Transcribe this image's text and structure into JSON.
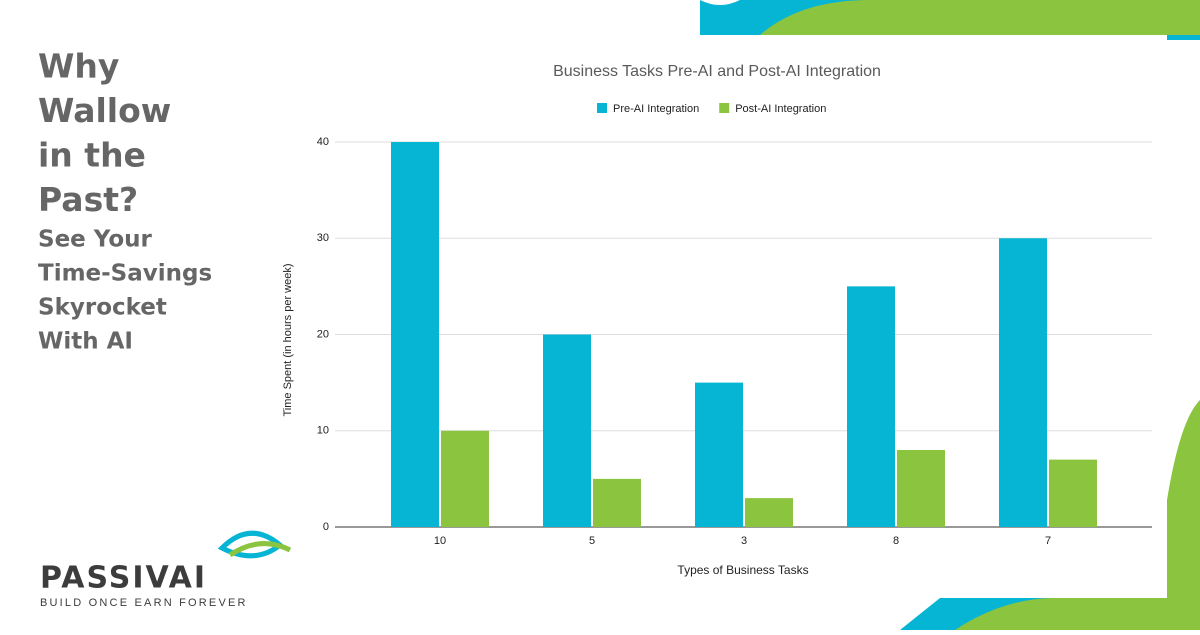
{
  "headline": [
    "Why",
    "Wallow",
    "in the",
    "Past?"
  ],
  "subheadline": [
    "See Your",
    "Time-Savings",
    "Skyrocket",
    "With AI"
  ],
  "brand": {
    "name": "PASSIVAI",
    "tagline": "BUILD ONCE EARN FOREVER"
  },
  "chart_data": {
    "type": "bar",
    "title": "Business Tasks Pre-AI and Post-AI Integration",
    "x_label": "Types of Business Tasks",
    "y_label": "Time Spent (in hours per week)",
    "categories": [
      "10",
      "5",
      "3",
      "8",
      "7"
    ],
    "series": [
      {
        "name": "Pre-AI Integration",
        "color": "#05b5d3",
        "values": [
          40,
          20,
          15,
          25,
          30
        ]
      },
      {
        "name": "Post-AI Integration",
        "color": "#8bc43f",
        "values": [
          10,
          5,
          3,
          8,
          7
        ]
      }
    ],
    "ylim": [
      0,
      40
    ],
    "yticks": [
      0,
      10,
      20,
      30,
      40
    ],
    "grid": true,
    "legend": "top"
  }
}
